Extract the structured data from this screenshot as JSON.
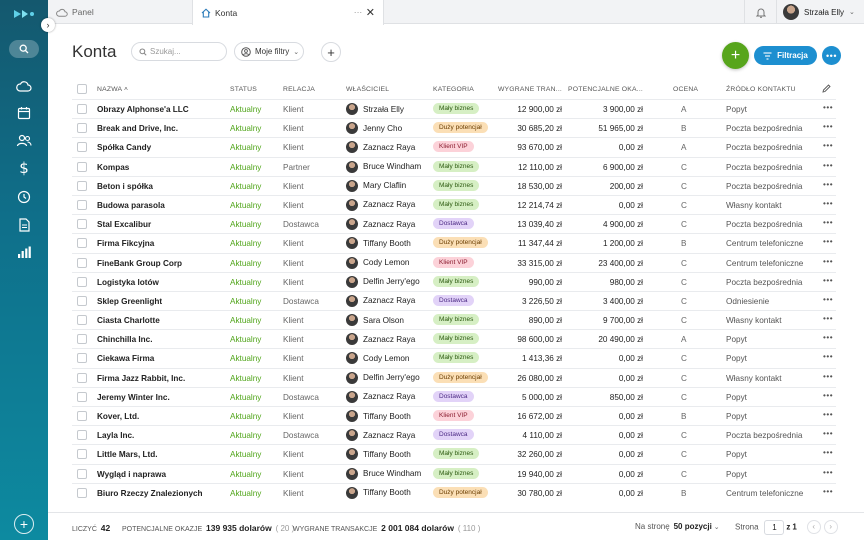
{
  "tabs": {
    "panel": "Panel",
    "konta": "Konta",
    "more": "···"
  },
  "user": {
    "name": "Strzała Elly"
  },
  "header": {
    "title": "Konta",
    "search_placeholder": "Szukaj...",
    "filters_label": "Moje filtry",
    "filtracja_label": "Filtracja"
  },
  "columns": {
    "name": "NAZWA ˄",
    "status": "STATUS",
    "relation": "RELACJA",
    "owner": "WŁAŚCICIEL",
    "category": "KATEGORIA",
    "won": "WYGRANE TRAN...",
    "potential": "POTENCJALNE OKA...",
    "rating": "OCENA",
    "source": "ŹRÓDŁO KONTAKTU"
  },
  "badge_colors": {
    "Mały biznes": "#d6efc4",
    "Duży potencjał": "#fbdfb6",
    "Klient VIP": "#fcd2d9",
    "Dostawca": "#e2d3f8"
  },
  "rows": [
    {
      "name": "Obrazy Alphonse'a LLC",
      "status": "Aktualny",
      "relation": "Klient",
      "owner": "Strzała Elly",
      "category": "Mały biznes",
      "won": "12 900,00 zł",
      "potential": "3 900,00 zł",
      "rating": "A",
      "source": "Popyt"
    },
    {
      "name": "Break and Drive, Inc.",
      "status": "Aktualny",
      "relation": "Klient",
      "owner": "Jenny Cho",
      "category": "Duży potencjał",
      "won": "30 685,20 zł",
      "potential": "51 965,00 zł",
      "rating": "B",
      "source": "Poczta bezpośrednia"
    },
    {
      "name": "Spółka Candy",
      "status": "Aktualny",
      "relation": "Klient",
      "owner": "Zaznacz Raya",
      "category": "Klient VIP",
      "won": "93 670,00 zł",
      "potential": "0,00 zł",
      "rating": "A",
      "source": "Poczta bezpośrednia"
    },
    {
      "name": "Kompas",
      "status": "Aktualny",
      "relation": "Partner",
      "owner": "Bruce Windham",
      "category": "Mały biznes",
      "won": "12 110,00 zł",
      "potential": "6 900,00 zł",
      "rating": "C",
      "source": "Poczta bezpośrednia"
    },
    {
      "name": "Beton i spółka",
      "status": "Aktualny",
      "relation": "Klient",
      "owner": "Mary Claflin",
      "category": "Mały biznes",
      "won": "18 530,00 zł",
      "potential": "200,00 zł",
      "rating": "C",
      "source": "Poczta bezpośrednia"
    },
    {
      "name": "Budowa parasola",
      "status": "Aktualny",
      "relation": "Klient",
      "owner": "Zaznacz Raya",
      "category": "Mały biznes",
      "won": "12 214,74 zł",
      "potential": "0,00 zł",
      "rating": "C",
      "source": "Własny kontakt"
    },
    {
      "name": "Stal Excalibur",
      "status": "Aktualny",
      "relation": "Dostawca",
      "owner": "Zaznacz Raya",
      "category": "Dostawca",
      "won": "13 039,40 zł",
      "potential": "4 900,00 zł",
      "rating": "C",
      "source": "Poczta bezpośrednia"
    },
    {
      "name": "Firma Fikcyjna",
      "status": "Aktualny",
      "relation": "Klient",
      "owner": "Tiffany Booth",
      "category": "Duży potencjał",
      "won": "11 347,44 zł",
      "potential": "1 200,00 zł",
      "rating": "B",
      "source": "Centrum telefoniczne"
    },
    {
      "name": "FineBank Group Corp",
      "status": "Aktualny",
      "relation": "Klient",
      "owner": "Cody Lemon",
      "category": "Klient VIP",
      "won": "33 315,00 zł",
      "potential": "23 400,00 zł",
      "rating": "C",
      "source": "Centrum telefoniczne"
    },
    {
      "name": "Logistyka lotów",
      "status": "Aktualny",
      "relation": "Klient",
      "owner": "Delfin Jerry'ego",
      "category": "Mały biznes",
      "won": "990,00 zł",
      "potential": "980,00 zł",
      "rating": "C",
      "source": "Poczta bezpośrednia"
    },
    {
      "name": "Sklep Greenlight",
      "status": "Aktualny",
      "relation": "Dostawca",
      "owner": "Zaznacz Raya",
      "category": "Dostawca",
      "won": "3 226,50 zł",
      "potential": "3 400,00 zł",
      "rating": "C",
      "source": "Odniesienie"
    },
    {
      "name": "Ciasta Charlotte",
      "status": "Aktualny",
      "relation": "Klient",
      "owner": "Sara Olson",
      "category": "Mały biznes",
      "won": "890,00 zł",
      "potential": "9 700,00 zł",
      "rating": "C",
      "source": "Własny kontakt"
    },
    {
      "name": "Chinchilla Inc.",
      "status": "Aktualny",
      "relation": "Klient",
      "owner": "Zaznacz Raya",
      "category": "Mały biznes",
      "won": "98 600,00 zł",
      "potential": "20 490,00 zł",
      "rating": "A",
      "source": "Popyt"
    },
    {
      "name": "Ciekawa Firma",
      "status": "Aktualny",
      "relation": "Klient",
      "owner": "Cody Lemon",
      "category": "Mały biznes",
      "won": "1 413,36 zł",
      "potential": "0,00 zł",
      "rating": "C",
      "source": "Popyt"
    },
    {
      "name": "Firma Jazz Rabbit, Inc.",
      "status": "Aktualny",
      "relation": "Klient",
      "owner": "Delfin Jerry'ego",
      "category": "Duży potencjał",
      "won": "26 080,00 zł",
      "potential": "0,00 zł",
      "rating": "C",
      "source": "Własny kontakt"
    },
    {
      "name": "Jeremy Winter Inc.",
      "status": "Aktualny",
      "relation": "Dostawca",
      "owner": "Zaznacz Raya",
      "category": "Dostawca",
      "won": "5 000,00 zł",
      "potential": "850,00 zł",
      "rating": "C",
      "source": "Popyt"
    },
    {
      "name": "Kover, Ltd.",
      "status": "Aktualny",
      "relation": "Klient",
      "owner": "Tiffany Booth",
      "category": "Klient VIP",
      "won": "16 672,00 zł",
      "potential": "0,00 zł",
      "rating": "B",
      "source": "Popyt"
    },
    {
      "name": "Layla Inc.",
      "status": "Aktualny",
      "relation": "Dostawca",
      "owner": "Zaznacz Raya",
      "category": "Dostawca",
      "won": "4 110,00 zł",
      "potential": "0,00 zł",
      "rating": "C",
      "source": "Poczta bezpośrednia"
    },
    {
      "name": "Little Mars, Ltd.",
      "status": "Aktualny",
      "relation": "Klient",
      "owner": "Tiffany Booth",
      "category": "Mały biznes",
      "won": "32 260,00 zł",
      "potential": "0,00 zł",
      "rating": "C",
      "source": "Popyt"
    },
    {
      "name": "Wygląd i naprawa",
      "status": "Aktualny",
      "relation": "Klient",
      "owner": "Bruce Windham",
      "category": "Mały biznes",
      "won": "19 940,00 zł",
      "potential": "0,00 zł",
      "rating": "C",
      "source": "Popyt"
    },
    {
      "name": "Biuro Rzeczy Znalezionych",
      "status": "Aktualny",
      "relation": "Klient",
      "owner": "Tiffany Booth",
      "category": "Duży potencjał",
      "won": "30 780,00 zł",
      "potential": "0,00 zł",
      "rating": "B",
      "source": "Centrum telefoniczne"
    }
  ],
  "footer": {
    "count_label": "LICZYĆ",
    "count_value": "42",
    "potential_label": "POTENCJALNE OKAZJE",
    "potential_value": "139 935 dolarów",
    "potential_count": "( 20 )",
    "won_label": "WYGRANE TRANSAKCJE",
    "won_value": "2 001 084 dolarów",
    "won_count": "( 110 )",
    "per_page_label": "Na stronę",
    "per_page_value": "50 pozycji",
    "page_label": "Strona",
    "page_value": "1",
    "page_of": "z",
    "page_total": "1"
  }
}
